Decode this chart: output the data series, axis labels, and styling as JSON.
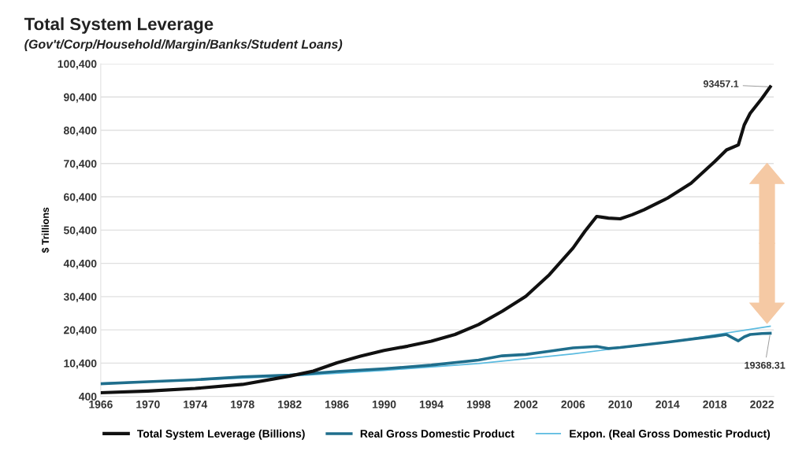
{
  "chart_data": {
    "type": "line",
    "title": "Total System Leverage",
    "subtitle": "(Gov't/Corp/Household/Margin/Banks/Student Loans)",
    "ylabel": "$ Trillions",
    "xlim": [
      1966,
      2023
    ],
    "xticks": [
      1966,
      1970,
      1974,
      1978,
      1982,
      1986,
      1990,
      1994,
      1998,
      2002,
      2006,
      2010,
      2014,
      2018,
      2022
    ],
    "ylim": [
      400,
      100400
    ],
    "yticks": [
      {
        "value": 400,
        "label": "400"
      },
      {
        "value": 10400,
        "label": "10,400"
      },
      {
        "value": 20400,
        "label": "20,400"
      },
      {
        "value": 30400,
        "label": "30,400"
      },
      {
        "value": 40400,
        "label": "40,400"
      },
      {
        "value": 50400,
        "label": "50,400"
      },
      {
        "value": 60400,
        "label": "60,400"
      },
      {
        "value": 70400,
        "label": "70,400"
      },
      {
        "value": 80400,
        "label": "80,400"
      },
      {
        "value": 90400,
        "label": "90,400"
      },
      {
        "value": 100400,
        "label": "100,400"
      }
    ],
    "grid": "y",
    "legend": "bottom",
    "marker": "none",
    "line_style": "solid",
    "series": [
      {
        "name": "Total System Leverage (Billions)",
        "color": "#111111",
        "x": [
          1966,
          1970,
          1974,
          1978,
          1982,
          1984,
          1986,
          1988,
          1990,
          1992,
          1994,
          1996,
          1998,
          2000,
          2002,
          2004,
          2006,
          2007,
          2008,
          2009,
          2010,
          2011,
          2012,
          2014,
          2016,
          2018,
          2019,
          2020,
          2020.5,
          2021,
          2022,
          2022.7
        ],
        "values": [
          1500,
          2000,
          2800,
          4000,
          6500,
          8000,
          10500,
          12500,
          14200,
          15500,
          17000,
          19000,
          22000,
          26000,
          30500,
          37000,
          45000,
          50000,
          54500,
          54000,
          53800,
          55000,
          56500,
          60000,
          64500,
          71000,
          74500,
          76000,
          82000,
          85500,
          90000,
          93457.1
        ]
      },
      {
        "name": "Real Gross Domestic Product",
        "color": "#1f6e8c",
        "x": [
          1966,
          1970,
          1974,
          1978,
          1982,
          1986,
          1990,
          1994,
          1998,
          2000,
          2002,
          2004,
          2006,
          2008,
          2009,
          2010,
          2014,
          2018,
          2019,
          2020,
          2020.5,
          2021,
          2022,
          2022.7
        ],
        "values": [
          4200,
          4800,
          5400,
          6300,
          6800,
          7900,
          8700,
          9800,
          11300,
          12600,
          13000,
          14000,
          15000,
          15400,
          14800,
          15100,
          16700,
          18500,
          19000,
          17100,
          18300,
          19000,
          19300,
          19368.31
        ]
      },
      {
        "name": "Expon. (Real Gross Domestic Product)",
        "color": "#5bbbe0",
        "x": [
          1966,
          1974,
          1982,
          1990,
          1998,
          2006,
          2014,
          2022.7
        ],
        "values": [
          4400,
          5300,
          6500,
          8200,
          10300,
          13200,
          16700,
          21500
        ]
      }
    ],
    "annotations": [
      {
        "text": "93457.1",
        "x": 2022.7,
        "y": 93457.1
      },
      {
        "text": "19368.31",
        "x": 2022.7,
        "y": 19368.31
      }
    ]
  }
}
